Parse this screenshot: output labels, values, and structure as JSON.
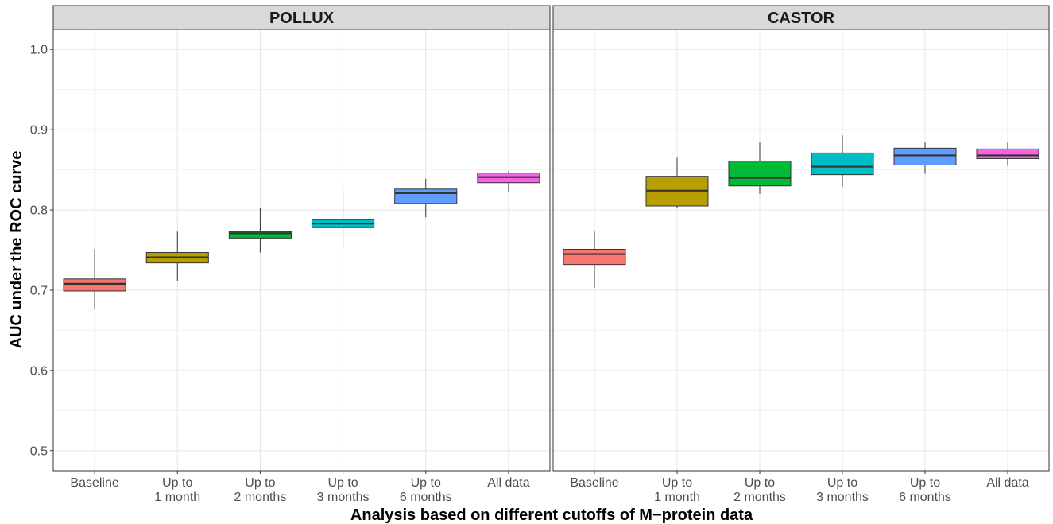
{
  "chart_data": {
    "type": "boxplot",
    "xlabel": "Analysis based on different cutoffs of M−protein data",
    "ylabel": "AUC under the ROC curve",
    "ylim": [
      0.475,
      1.025
    ],
    "y_ticks": [
      "0.5",
      "0.6",
      "0.7",
      "0.8",
      "0.9",
      "1.0"
    ],
    "categories": [
      [
        "Baseline"
      ],
      [
        "Up to",
        "1 month"
      ],
      [
        "Up to",
        "2 months"
      ],
      [
        "Up to",
        "3 months"
      ],
      [
        "Up to",
        "6 months"
      ],
      [
        "All data"
      ]
    ],
    "colors": [
      "#F8766D",
      "#B79F00",
      "#00BA38",
      "#00BFC4",
      "#619CFF",
      "#F564E3"
    ],
    "grid": true,
    "legend": "none",
    "panels": [
      {
        "title": "POLLUX",
        "boxes": [
          {
            "min": 0.677,
            "q1": 0.699,
            "median": 0.708,
            "q3": 0.714,
            "max": 0.751
          },
          {
            "min": 0.711,
            "q1": 0.734,
            "median": 0.741,
            "q3": 0.747,
            "max": 0.773
          },
          {
            "min": 0.747,
            "q1": 0.765,
            "median": 0.771,
            "q3": 0.773,
            "max": 0.802
          },
          {
            "min": 0.754,
            "q1": 0.778,
            "median": 0.783,
            "q3": 0.788,
            "max": 0.824
          },
          {
            "min": 0.791,
            "q1": 0.808,
            "median": 0.821,
            "q3": 0.826,
            "max": 0.839
          },
          {
            "min": 0.823,
            "q1": 0.834,
            "median": 0.841,
            "q3": 0.846,
            "max": 0.848
          }
        ]
      },
      {
        "title": "CASTOR",
        "boxes": [
          {
            "min": 0.703,
            "q1": 0.732,
            "median": 0.745,
            "q3": 0.751,
            "max": 0.773
          },
          {
            "min": 0.802,
            "q1": 0.805,
            "median": 0.824,
            "q3": 0.842,
            "max": 0.865
          },
          {
            "min": 0.82,
            "q1": 0.83,
            "median": 0.84,
            "q3": 0.861,
            "max": 0.884
          },
          {
            "min": 0.829,
            "q1": 0.844,
            "median": 0.854,
            "q3": 0.871,
            "max": 0.893
          },
          {
            "min": 0.845,
            "q1": 0.856,
            "median": 0.868,
            "q3": 0.877,
            "max": 0.885
          },
          {
            "min": 0.855,
            "q1": 0.864,
            "median": 0.868,
            "q3": 0.876,
            "max": 0.884
          }
        ]
      }
    ]
  }
}
